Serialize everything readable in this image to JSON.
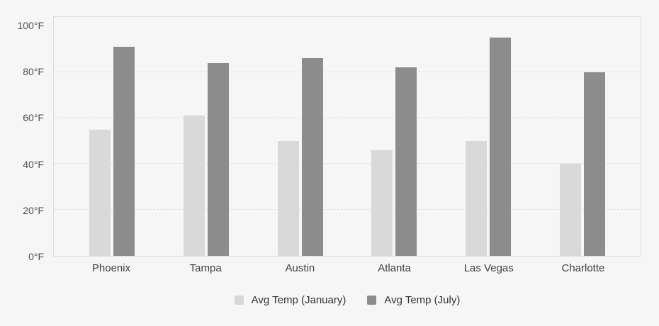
{
  "chart_data": {
    "type": "bar",
    "title": "",
    "categories": [
      "Phoenix",
      "Tampa",
      "Austin",
      "Atlanta",
      "Las Vegas",
      "Charlotte"
    ],
    "series": [
      {
        "name": "Avg Temp (January)",
        "color": "#d9d9d9",
        "values": [
          55,
          61,
          50,
          46,
          50,
          40
        ]
      },
      {
        "name": "Avg Temp (July)",
        "color": "#8c8c8c",
        "values": [
          91,
          84,
          86,
          82,
          95,
          80
        ]
      }
    ],
    "xlabel": "",
    "ylabel": "",
    "yticks": [
      0,
      20,
      40,
      60,
      80,
      100
    ],
    "ytick_suffix": "°F",
    "ylim": [
      0,
      104
    ],
    "grid": "horizontal dashed gridlines at 20, 40, 60, 80",
    "legend_position": "bottom-center"
  },
  "colors": {
    "background": "#f6f6f6",
    "plot_border": "#dcdcdc",
    "gridline": "#e0e0e0",
    "tick_text": "#4f4f4f",
    "category_text": "#3f3f3f",
    "legend_text": "#333333",
    "series_january": "#d9d9d9",
    "series_july": "#8c8c8c"
  }
}
